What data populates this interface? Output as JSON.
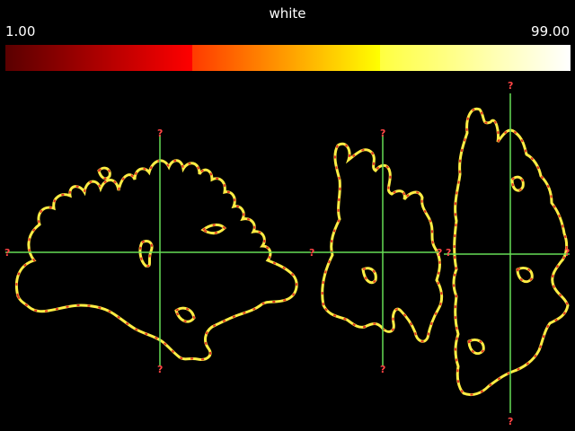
{
  "colorbar": {
    "title": "white",
    "min_label": "1.00",
    "max_label": "99.00",
    "segments": [
      [
        "#5a0000",
        "#ff0000"
      ],
      [
        "#ff3a00",
        "#ffff00"
      ],
      [
        "#ffff40",
        "#ffffff"
      ]
    ]
  },
  "overlay": {
    "contour_color": "#ffee44",
    "contour_dash_color": "#e03020",
    "crosshair_color": "#66dd55",
    "marker_color": "#ff4444",
    "marker_text": "?"
  }
}
